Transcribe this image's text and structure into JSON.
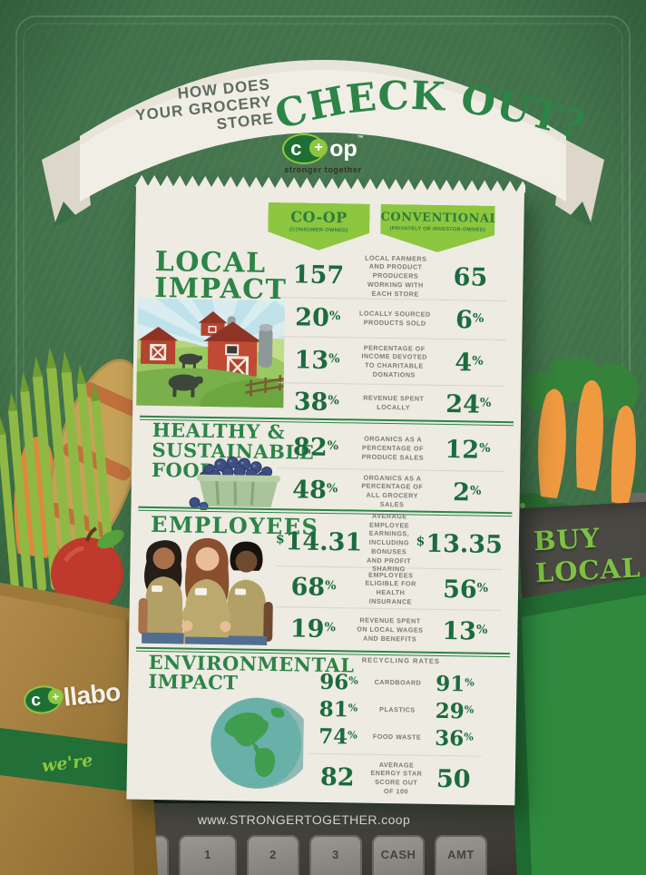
{
  "header": {
    "kicker": [
      "HOW DOES",
      "YOUR GROCERY",
      "STORE"
    ],
    "title": "CHECK OUT?"
  },
  "logo": {
    "c": "c",
    "plus": "+",
    "op": "op",
    "tm": "™",
    "tagline": "stronger together"
  },
  "receipt": {
    "col_headers": {
      "coop": {
        "title": "CO-OP",
        "subtitle": "(CONSUMER-OWNED)"
      },
      "conv": {
        "title": "CONVENTIONAL",
        "subtitle": "(PRIVATELY OR INVESTOR-OWNED)"
      }
    },
    "sections": [
      {
        "heading_lines": [
          "LOCAL",
          "IMPACT"
        ],
        "rows": [
          {
            "coop": "157",
            "label": "LOCAL FARMERS AND PRODUCT PRODUCERS WORKING WITH EACH STORE",
            "conv": "65"
          },
          {
            "coop": "20",
            "coop_sup": "%",
            "label": "LOCALLY SOURCED PRODUCTS SOLD",
            "conv": "6",
            "conv_sup": "%"
          },
          {
            "coop": "13",
            "coop_sup": "%",
            "label": "PERCENTAGE OF INCOME DEVOTED TO CHARITABLE DONATIONS",
            "conv": "4",
            "conv_sup": "%"
          },
          {
            "coop": "38",
            "coop_sup": "%",
            "label": "REVENUE SPENT LOCALLY",
            "conv": "24",
            "conv_sup": "%"
          }
        ]
      },
      {
        "heading_lines": [
          "HEALTHY &",
          "SUSTAINABLE",
          "FOODS"
        ],
        "rows": [
          {
            "coop": "82",
            "coop_sup": "%",
            "label": "ORGANICS AS A PERCENTAGE OF PRODUCE SALES",
            "conv": "12",
            "conv_sup": "%"
          },
          {
            "coop": "48",
            "coop_sup": "%",
            "label": "ORGANICS AS A PERCENTAGE OF ALL GROCERY SALES",
            "conv": "2",
            "conv_sup": "%"
          }
        ]
      },
      {
        "heading_lines": [
          "EMPLOYEES"
        ],
        "rows": [
          {
            "coop_pre": "$",
            "coop": "14.31",
            "label": "AVERAGE EMPLOYEE EARNINGS, INCLUDING BONUSES AND PROFIT SHARING",
            "conv_pre": "$",
            "conv": "13.35"
          },
          {
            "coop": "68",
            "coop_sup": "%",
            "label": "EMPLOYEES ELIGIBLE FOR HEALTH INSURANCE",
            "conv": "56",
            "conv_sup": "%"
          },
          {
            "coop": "19",
            "coop_sup": "%",
            "label": "REVENUE SPENT ON LOCAL WAGES AND BENEFITS",
            "conv": "13",
            "conv_sup": "%"
          }
        ]
      },
      {
        "heading_lines": [
          "ENVIRONMENTAL",
          "IMPACT"
        ],
        "group_label": "RECYCLING RATES",
        "rows": [
          {
            "coop": "96",
            "coop_sup": "%",
            "label": "CARDBOARD",
            "conv": "91",
            "conv_sup": "%"
          },
          {
            "coop": "81",
            "coop_sup": "%",
            "label": "PLASTICS",
            "conv": "29",
            "conv_sup": "%"
          },
          {
            "coop": "74",
            "coop_sup": "%",
            "label": "FOOD WASTE",
            "conv": "36",
            "conv_sup": "%"
          },
          {
            "coop": "82",
            "label": "AVERAGE ENERGY STAR SCORE OUT OF 100",
            "conv": "50"
          }
        ]
      }
    ]
  },
  "side": {
    "bag_logo_c": "c",
    "bag_logo_plus": "+",
    "bag_word": "llabo",
    "bag_script": "we're",
    "buy_local_line1": "BUY",
    "buy_local_line2": "LOCAL"
  },
  "footer": {
    "website": "www.STRONGERTOGETHER.coop",
    "keys": [
      "$",
      "1",
      "2",
      "3",
      "CASH",
      "AMT"
    ]
  },
  "palette": {
    "background_green": "#3c6e45",
    "accent_green": "#2c8447",
    "light_green": "#8dc63f",
    "stat_green": "#1c6b3e",
    "receipt_paper": "#edebe2",
    "register_grey": "#3a3833",
    "buy_local_green": "#7ec143"
  },
  "chart_data": {
    "type": "table",
    "title": "HOW DOES YOUR GROCERY STORE CHECK OUT?",
    "columns": [
      "CO-OP (CONSUMER-OWNED)",
      "CONVENTIONAL (PRIVATELY OR INVESTOR-OWNED)"
    ],
    "rows": [
      {
        "section": "LOCAL IMPACT",
        "metric": "Local farmers and product producers working with each store",
        "coop": 157,
        "conventional": 65
      },
      {
        "section": "LOCAL IMPACT",
        "metric": "Locally sourced products sold (%)",
        "coop": 20,
        "conventional": 6
      },
      {
        "section": "LOCAL IMPACT",
        "metric": "Percentage of income devoted to charitable donations (%)",
        "coop": 13,
        "conventional": 4
      },
      {
        "section": "LOCAL IMPACT",
        "metric": "Revenue spent locally (%)",
        "coop": 38,
        "conventional": 24
      },
      {
        "section": "HEALTHY & SUSTAINABLE FOODS",
        "metric": "Organics as a percentage of produce sales (%)",
        "coop": 82,
        "conventional": 12
      },
      {
        "section": "HEALTHY & SUSTAINABLE FOODS",
        "metric": "Organics as a percentage of all grocery sales (%)",
        "coop": 48,
        "conventional": 2
      },
      {
        "section": "EMPLOYEES",
        "metric": "Average employee earnings, including bonuses and profit sharing ($/hr)",
        "coop": 14.31,
        "conventional": 13.35
      },
      {
        "section": "EMPLOYEES",
        "metric": "Employees eligible for health insurance (%)",
        "coop": 68,
        "conventional": 56
      },
      {
        "section": "EMPLOYEES",
        "metric": "Revenue spent on local wages and benefits (%)",
        "coop": 19,
        "conventional": 13
      },
      {
        "section": "ENVIRONMENTAL IMPACT",
        "metric": "Recycling rate: cardboard (%)",
        "coop": 96,
        "conventional": 91
      },
      {
        "section": "ENVIRONMENTAL IMPACT",
        "metric": "Recycling rate: plastics (%)",
        "coop": 81,
        "conventional": 29
      },
      {
        "section": "ENVIRONMENTAL IMPACT",
        "metric": "Recycling rate: food waste (%)",
        "coop": 74,
        "conventional": 36
      },
      {
        "section": "ENVIRONMENTAL IMPACT",
        "metric": "Average ENERGY STAR score out of 100",
        "coop": 82,
        "conventional": 50
      }
    ]
  }
}
